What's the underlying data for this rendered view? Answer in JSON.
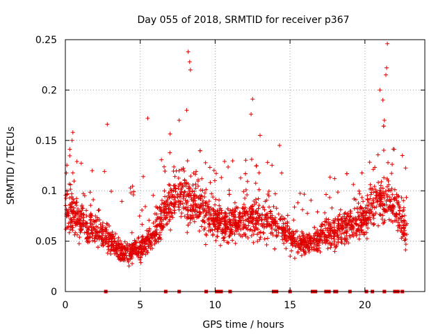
{
  "chart_data": {
    "type": "scatter",
    "title": "Day 055 of 2018, SRMTID for receiver p367",
    "xlabel": "GPS time / hours",
    "ylabel": "SRMTID / TECUs",
    "xlim": [
      0,
      24
    ],
    "ylim": [
      0,
      0.25
    ],
    "x_ticks": [
      0,
      5,
      10,
      15,
      20
    ],
    "x_tick_labels": [
      "0",
      "5",
      "10",
      "15",
      "20"
    ],
    "y_ticks": [
      0,
      0.05,
      0.1,
      0.15,
      0.2,
      0.25
    ],
    "y_tick_labels": [
      "0",
      "0.05",
      "0.1",
      "0.15",
      "0.2",
      "0.25"
    ],
    "grid": true,
    "marker": "plus",
    "color": "#e00000",
    "envelope": {
      "hours": [
        0,
        1,
        2,
        3,
        4,
        5,
        6,
        7,
        8,
        9,
        10,
        11,
        12,
        13,
        14,
        15,
        16,
        17,
        18,
        19,
        20,
        21,
        22,
        23
      ],
      "typical": [
        0.085,
        0.07,
        0.062,
        0.05,
        0.038,
        0.042,
        0.06,
        0.09,
        0.095,
        0.085,
        0.07,
        0.065,
        0.075,
        0.07,
        0.07,
        0.055,
        0.045,
        0.055,
        0.06,
        0.065,
        0.075,
        0.09,
        0.085,
        0.05
      ]
    },
    "outliers": [
      {
        "x": 0.5,
        "y": 0.158
      },
      {
        "x": 0.45,
        "y": 0.15
      },
      {
        "x": 2.8,
        "y": 0.166
      },
      {
        "x": 5.5,
        "y": 0.172
      },
      {
        "x": 8.2,
        "y": 0.238
      },
      {
        "x": 8.3,
        "y": 0.228
      },
      {
        "x": 8.35,
        "y": 0.22
      },
      {
        "x": 8.1,
        "y": 0.18
      },
      {
        "x": 7.6,
        "y": 0.17
      },
      {
        "x": 12.5,
        "y": 0.191
      },
      {
        "x": 12.4,
        "y": 0.176
      },
      {
        "x": 13.0,
        "y": 0.155
      },
      {
        "x": 14.3,
        "y": 0.145
      },
      {
        "x": 21.5,
        "y": 0.246
      },
      {
        "x": 21.45,
        "y": 0.222
      },
      {
        "x": 21.4,
        "y": 0.215
      },
      {
        "x": 21.2,
        "y": 0.19
      },
      {
        "x": 21.0,
        "y": 0.2
      },
      {
        "x": 21.3,
        "y": 0.17
      },
      {
        "x": 22.5,
        "y": 0.135
      }
    ],
    "zero_marks": [
      2.7,
      6.7,
      7.6,
      9.4,
      10.1,
      10.3,
      10.4,
      11.0,
      13.9,
      14.0,
      14.1,
      15.0,
      16.5,
      16.6,
      16.7,
      17.4,
      17.5,
      17.6,
      18.0,
      18.1,
      19.0,
      20.1,
      20.5,
      21.3,
      22.0,
      22.1,
      22.2,
      22.5
    ]
  }
}
